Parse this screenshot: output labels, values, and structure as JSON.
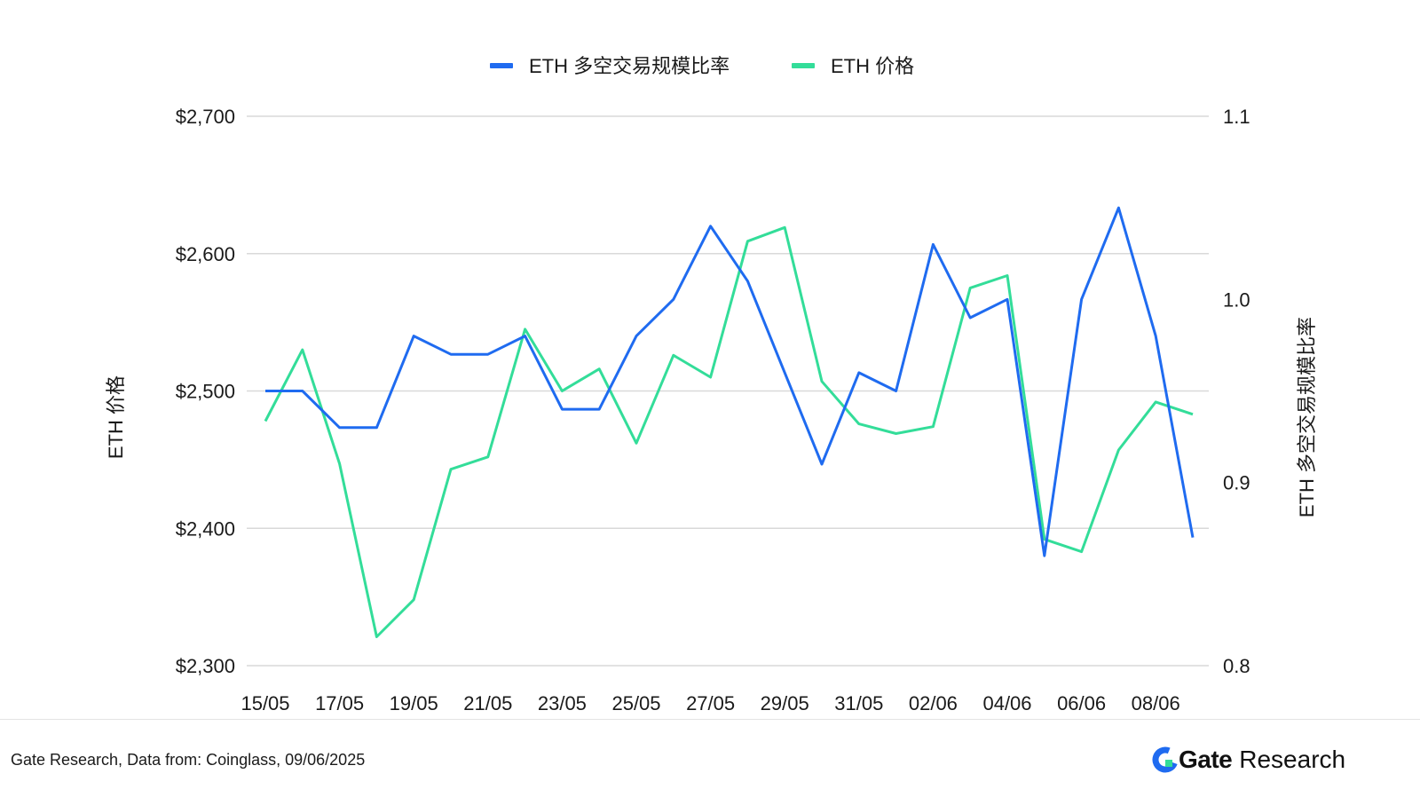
{
  "chart_data": {
    "type": "line",
    "title": "",
    "legend": {
      "placement": "top-center"
    },
    "grid": true,
    "x": [
      "15/05",
      "16/05",
      "17/05",
      "18/05",
      "19/05",
      "20/05",
      "21/05",
      "22/05",
      "23/05",
      "24/05",
      "25/05",
      "26/05",
      "27/05",
      "28/05",
      "29/05",
      "30/05",
      "31/05",
      "01/06",
      "02/06",
      "03/06",
      "04/06",
      "05/06",
      "06/06",
      "07/06",
      "08/06",
      "09/06"
    ],
    "x_tick_labels": [
      "15/05",
      "17/05",
      "19/05",
      "21/05",
      "23/05",
      "25/05",
      "27/05",
      "29/05",
      "31/05",
      "02/06",
      "04/06",
      "06/06",
      "08/06"
    ],
    "y_left": {
      "label": "ETH 价格",
      "ylim": [
        2300,
        2700
      ],
      "tick_labels": [
        "$2,700",
        "$2,600",
        "$2,500",
        "$2,400",
        "$2,300"
      ],
      "tick_values": [
        2700,
        2600,
        2500,
        2400,
        2300
      ]
    },
    "y_right": {
      "label": "ETH 多空交易规模比率",
      "ylim": [
        0.8,
        1.1
      ],
      "tick_labels": [
        "1.1",
        "1.0",
        "0.9",
        "0.8"
      ],
      "tick_values": [
        1.1,
        1.0,
        0.9,
        0.8
      ]
    },
    "series": [
      {
        "name": "ETH 多空交易规模比率",
        "axis": "right",
        "color": "#1f6bf0",
        "values": [
          0.95,
          0.95,
          0.93,
          0.93,
          0.98,
          0.97,
          0.97,
          0.98,
          0.94,
          0.94,
          0.98,
          1.0,
          1.04,
          1.01,
          0.96,
          0.91,
          0.96,
          0.95,
          1.03,
          0.99,
          1.0,
          0.86,
          1.0,
          1.05,
          0.98,
          0.87
        ]
      },
      {
        "name": "ETH  价格",
        "axis": "left",
        "color": "#33dd99",
        "values": [
          2478,
          2530,
          2447,
          2321,
          2348,
          2443,
          2452,
          2545,
          2500,
          2516,
          2462,
          2526,
          2510,
          2609,
          2619,
          2507,
          2476,
          2469,
          2474,
          2575,
          2584,
          2392,
          2383,
          2457,
          2492,
          2483
        ]
      }
    ]
  },
  "footer": {
    "source": "Gate Research, Data from: Coinglass, 09/06/2025",
    "brand_bold": "Gate",
    "brand_light": "Research"
  }
}
